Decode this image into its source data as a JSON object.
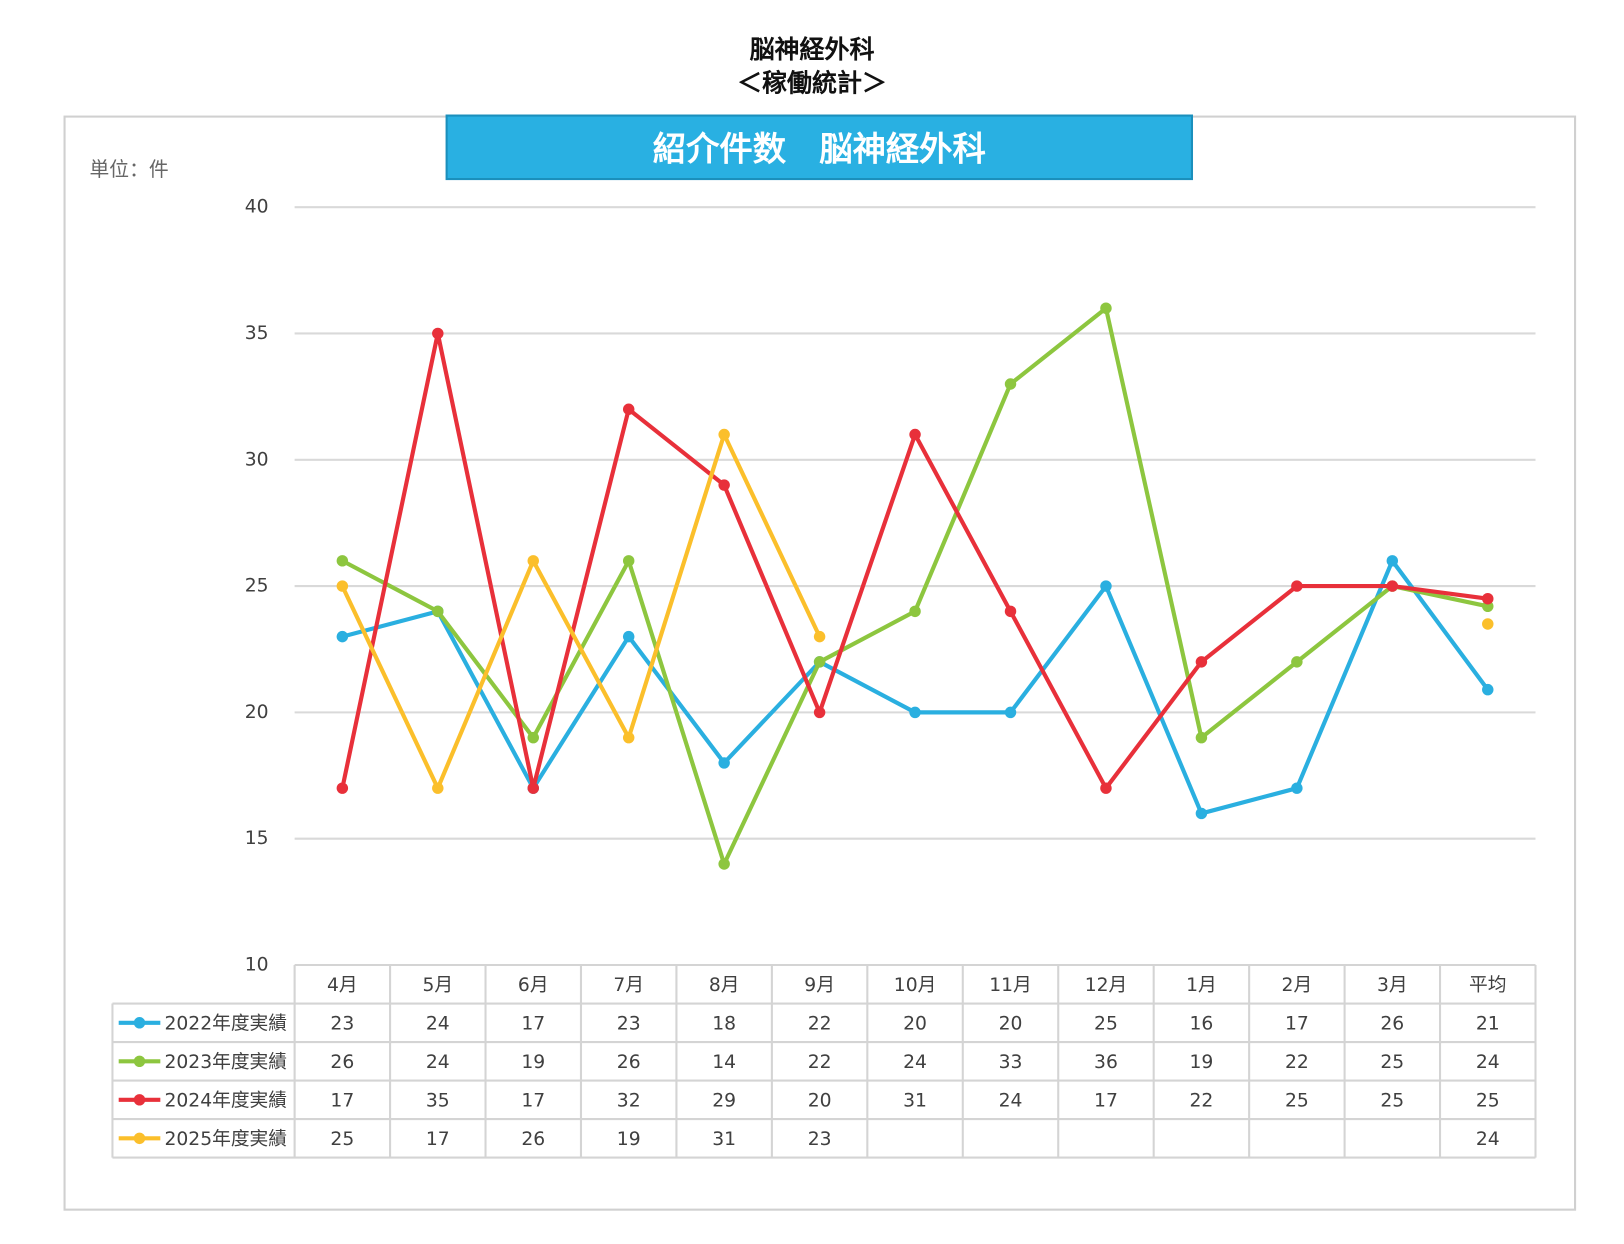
{
  "chart_data": {
    "type": "line",
    "page_title": "脳神経外科",
    "page_subtitle": "＜稼働統計＞",
    "title": "紹介件数　脳神経外科",
    "unit_label": "単位：件",
    "categories": [
      "4月",
      "5月",
      "6月",
      "7月",
      "8月",
      "9月",
      "10月",
      "11月",
      "12月",
      "1月",
      "2月",
      "3月",
      "平均"
    ],
    "series": [
      {
        "name": "2022年度実績",
        "color": "#2aafe0",
        "values": [
          23,
          24,
          17,
          23,
          18,
          22,
          20,
          20,
          25,
          16,
          17,
          26,
          20.9
        ],
        "value_labels": [
          "23",
          "24",
          "17",
          "23",
          "18",
          "22",
          "20",
          "20",
          "25",
          "16",
          "17",
          "26",
          "21"
        ]
      },
      {
        "name": "2023年度実績",
        "color": "#8dc63f",
        "values": [
          26,
          24,
          19,
          26,
          14,
          22,
          24,
          33,
          36,
          19,
          22,
          25,
          24.2
        ],
        "value_labels": [
          "26",
          "24",
          "19",
          "26",
          "14",
          "22",
          "24",
          "33",
          "36",
          "19",
          "22",
          "25",
          "24"
        ]
      },
      {
        "name": "2024年度実績",
        "color": "#e8303a",
        "values": [
          17,
          35,
          17,
          32,
          29,
          20,
          31,
          24,
          17,
          22,
          25,
          25,
          24.5
        ],
        "value_labels": [
          "17",
          "35",
          "17",
          "32",
          "29",
          "20",
          "31",
          "24",
          "17",
          "22",
          "25",
          "25",
          "25"
        ]
      },
      {
        "name": "2025年度実績",
        "color": "#fbbf2b",
        "values": [
          25,
          17,
          26,
          19,
          31,
          23,
          null,
          null,
          null,
          null,
          null,
          null,
          23.5
        ],
        "value_labels": [
          "25",
          "17",
          "26",
          "19",
          "31",
          "23",
          null,
          null,
          null,
          null,
          null,
          null,
          "24"
        ]
      }
    ],
    "ylim": [
      10,
      40
    ],
    "yticks": [
      10,
      15,
      20,
      25,
      30,
      35,
      40
    ],
    "grid": true
  }
}
